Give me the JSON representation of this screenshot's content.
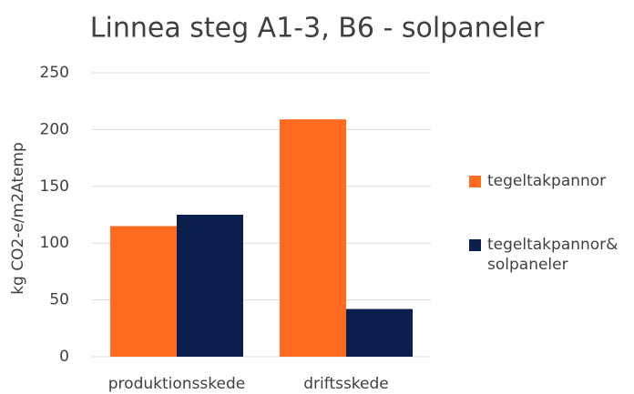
{
  "chart_data": {
    "type": "bar",
    "title": "Linnea steg A1-3, B6 - solpaneler",
    "y_label": "kg CO2-e/m2Atemp",
    "categories": [
      "produktionsskede",
      "driftsskede"
    ],
    "series": [
      {
        "name": "tegeltakpannor",
        "color": "#ff6b21",
        "values": [
          115,
          209
        ]
      },
      {
        "name": "tegeltakpannor& solpaneler",
        "color": "#0a1f4b",
        "values": [
          125,
          42
        ]
      }
    ],
    "ylim": [
      0,
      250
    ],
    "yticks": [
      0,
      50,
      100,
      150,
      200,
      250
    ],
    "grid": true,
    "legend": "right"
  }
}
